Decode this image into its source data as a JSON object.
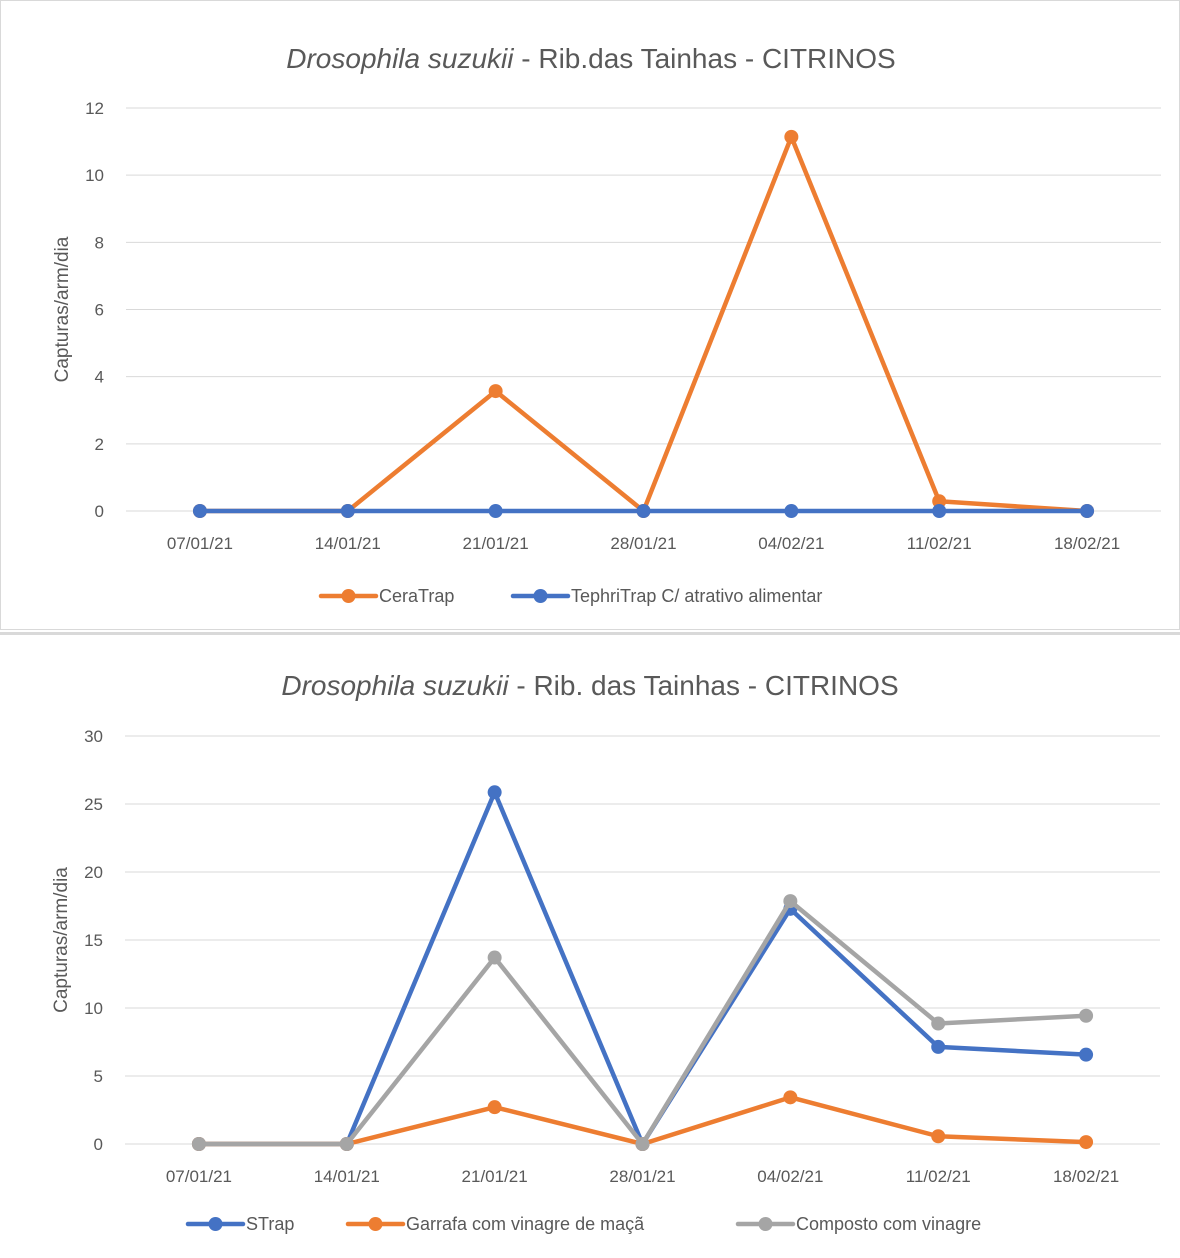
{
  "colors": {
    "orange": "#ED7D31",
    "blue": "#4472C4",
    "gray": "#A5A5A5"
  },
  "chart_data": [
    {
      "type": "line",
      "title_italic": "Drosophila suzukii",
      "title_rest": " - Rib.das Tainhas - CITRINOS",
      "xlabel": "",
      "ylabel": "Capturas/arm/dia",
      "categories": [
        "07/01/21",
        "14/01/21",
        "21/01/21",
        "28/01/21",
        "04/02/21",
        "11/02/21",
        "18/02/21"
      ],
      "yticks": [
        "0",
        "2",
        "4",
        "6",
        "8",
        "10",
        "12"
      ],
      "ylim": [
        0,
        12
      ],
      "grid": true,
      "legend_position": "bottom",
      "series": [
        {
          "name": "CeraTrap",
          "color": "#ED7D31",
          "values": [
            0,
            0,
            3.57,
            0,
            11.14,
            0.29,
            0
          ]
        },
        {
          "name": "TephriTrap C/ atrativo alimentar",
          "color": "#4472C4",
          "values": [
            0,
            0,
            0,
            0,
            0,
            0,
            0
          ]
        }
      ]
    },
    {
      "type": "line",
      "title_italic": "Drosophila suzukii",
      "title_rest": " - Rib. das Tainhas - CITRINOS",
      "xlabel": "",
      "ylabel": "Capturas/arm/dia",
      "categories": [
        "07/01/21",
        "14/01/21",
        "21/01/21",
        "28/01/21",
        "04/02/21",
        "11/02/21",
        "18/02/21"
      ],
      "yticks": [
        "0",
        "5",
        "10",
        "15",
        "20",
        "25",
        "30"
      ],
      "ylim": [
        0,
        30
      ],
      "grid": true,
      "legend_position": "bottom",
      "series": [
        {
          "name": "STrap",
          "color": "#4472C4",
          "values": [
            0,
            0,
            25.86,
            0,
            17.29,
            7.14,
            6.57
          ]
        },
        {
          "name": "Garrafa com vinagre de maçã",
          "color": "#ED7D31",
          "values": [
            0,
            0,
            2.71,
            0,
            3.43,
            0.57,
            0.14
          ]
        },
        {
          "name": "Composto com vinagre",
          "color": "#A5A5A5",
          "values": [
            0,
            0,
            13.71,
            0,
            17.86,
            8.86,
            9.43
          ]
        }
      ]
    }
  ]
}
